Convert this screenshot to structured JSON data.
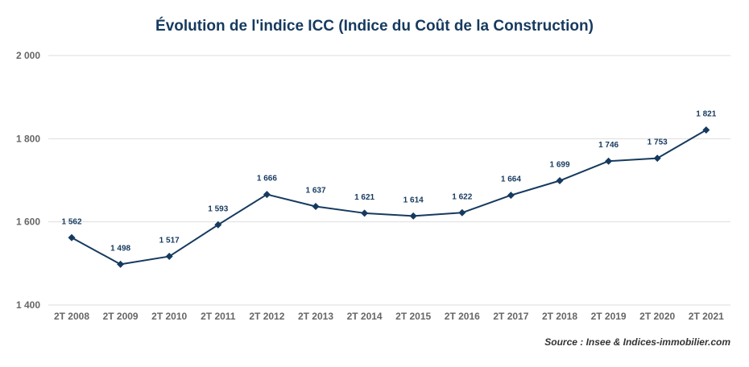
{
  "chart_data": {
    "type": "line",
    "title": "Évolution de l'indice ICC (Indice du Coût de la Construction)",
    "xlabel": "",
    "ylabel": "",
    "categories": [
      "2T 2008",
      "2T 2009",
      "2T 2010",
      "2T 2011",
      "2T 2012",
      "2T 2013",
      "2T 2014",
      "2T 2015",
      "2T 2016",
      "2T 2017",
      "2T 2018",
      "2T 2019",
      "2T 2020",
      "2T 2021"
    ],
    "values": [
      1562,
      1498,
      1517,
      1593,
      1666,
      1637,
      1621,
      1614,
      1622,
      1664,
      1699,
      1746,
      1753,
      1821
    ],
    "value_labels": [
      "1 562",
      "1 498",
      "1 517",
      "1 593",
      "1 666",
      "1 637",
      "1 621",
      "1 614",
      "1 622",
      "1 664",
      "1 699",
      "1 746",
      "1 753",
      "1 821"
    ],
    "ylim": [
      1400,
      2000
    ],
    "yticks": [
      1400,
      1600,
      1800,
      2000
    ],
    "ytick_labels": [
      "1 400",
      "1 600",
      "1 800",
      "2 000"
    ],
    "grid": true,
    "legend": "none",
    "line_color": "#163a5f",
    "grid_color": "#dddddd"
  },
  "source": "Source : Insee & Indices-immobilier.com"
}
